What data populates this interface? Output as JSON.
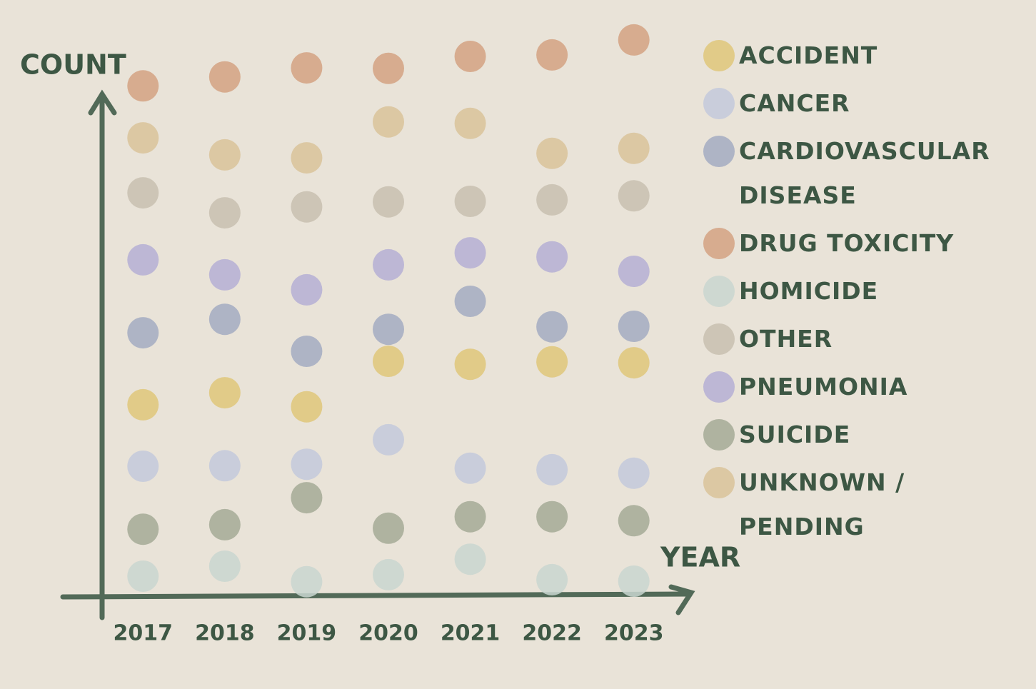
{
  "chart_data": {
    "type": "dot",
    "x_label": "YEAR",
    "y_label": "COUNT",
    "categories": [
      "2017",
      "2018",
      "2019",
      "2020",
      "2021",
      "2022",
      "2023"
    ],
    "ylim": [
      0,
      120
    ],
    "series": [
      {
        "name": "ACCIDENT",
        "color": "#dfc77a",
        "values": [
          38.3,
          40.7,
          37.9,
          47.0,
          46.4,
          46.9,
          46.7
        ]
      },
      {
        "name": "CANCER",
        "color": "#c3c9dc",
        "values": [
          26.0,
          26.1,
          26.4,
          31.3,
          25.6,
          25.3,
          24.6
        ]
      },
      {
        "name": "CARDIOVASCULAR DISEASE",
        "color": "#a3abc2",
        "values": [
          52.7,
          55.4,
          49.0,
          53.4,
          59.0,
          53.9,
          54.0
        ]
      },
      {
        "name": "DRUG TOXICITY",
        "color": "#d4a282",
        "values": [
          102.1,
          103.9,
          105.7,
          105.6,
          108.0,
          108.3,
          111.3
        ]
      },
      {
        "name": "HOMICIDE",
        "color": "#c9d6d0",
        "values": [
          4.0,
          6.0,
          2.9,
          4.3,
          7.4,
          3.3,
          3.0
        ]
      },
      {
        "name": "OTHER",
        "color": "#c8c0b0",
        "values": [
          80.7,
          76.7,
          77.9,
          78.9,
          79.0,
          79.3,
          80.1
        ]
      },
      {
        "name": "PNEUMONIA",
        "color": "#b5afd5",
        "values": [
          67.3,
          64.3,
          61.3,
          66.3,
          68.7,
          67.9,
          65.0
        ]
      },
      {
        "name": "SUICIDE",
        "color": "#a4aa97",
        "values": [
          13.4,
          14.3,
          19.7,
          13.6,
          15.9,
          15.9,
          15.1
        ]
      },
      {
        "name": "UNKNOWN / PENDING",
        "color": "#d9c39a",
        "values": [
          91.7,
          88.3,
          87.7,
          94.9,
          94.6,
          88.6,
          89.6
        ]
      }
    ]
  }
}
